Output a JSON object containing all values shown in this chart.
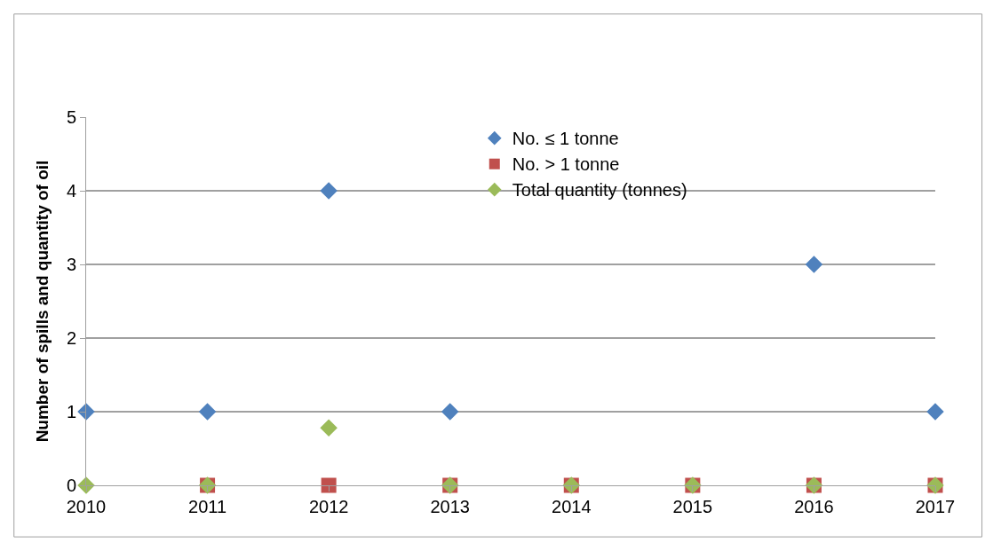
{
  "chart_data": {
    "type": "scatter",
    "ylabel": "Number of spills and quantity of oil",
    "x": [
      2010,
      2011,
      2012,
      2013,
      2014,
      2015,
      2016,
      2017
    ],
    "xlim": [
      2010,
      2017
    ],
    "xticks": [
      2010,
      2011,
      2012,
      2013,
      2014,
      2015,
      2016,
      2017
    ],
    "ylim": [
      0,
      5
    ],
    "yticks": [
      0,
      1,
      2,
      3,
      4,
      5
    ],
    "grid": "y",
    "legend": "top",
    "series": [
      {
        "name": "No. ≤ 1 tonne",
        "color": "#4f81bd",
        "marker": "diamond",
        "values": [
          1,
          1,
          4,
          1,
          null,
          null,
          3,
          1
        ]
      },
      {
        "name": "No. > 1 tonne",
        "color": "#c0504d",
        "marker": "square",
        "values": [
          null,
          0,
          0,
          0,
          0,
          0,
          0,
          0
        ]
      },
      {
        "name": "Total quantity (tonnes)",
        "color": "#9bbb59",
        "marker": "diamond",
        "values": [
          0,
          0,
          0.78,
          0,
          0,
          0,
          0,
          0
        ]
      }
    ]
  }
}
